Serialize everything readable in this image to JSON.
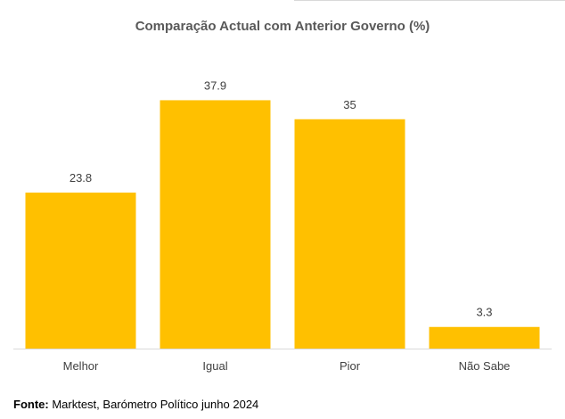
{
  "chart_data": {
    "type": "bar",
    "title": "Comparação Actual com Anterior Governo (%)",
    "categories": [
      "Melhor",
      "Igual",
      "Pior",
      "Não Sabe"
    ],
    "values": [
      23.8,
      37.9,
      35,
      3.3
    ],
    "data_labels": [
      "23.8",
      "37.9",
      "35",
      "3.3"
    ],
    "xlabel": "",
    "ylabel": "",
    "ylim": [
      0,
      40
    ],
    "grid": false,
    "legend": "none",
    "bar_color": "#FFC000"
  },
  "source": {
    "label": "Fonte:",
    "text": " Marktest, Barómetro Político junho 2024"
  }
}
